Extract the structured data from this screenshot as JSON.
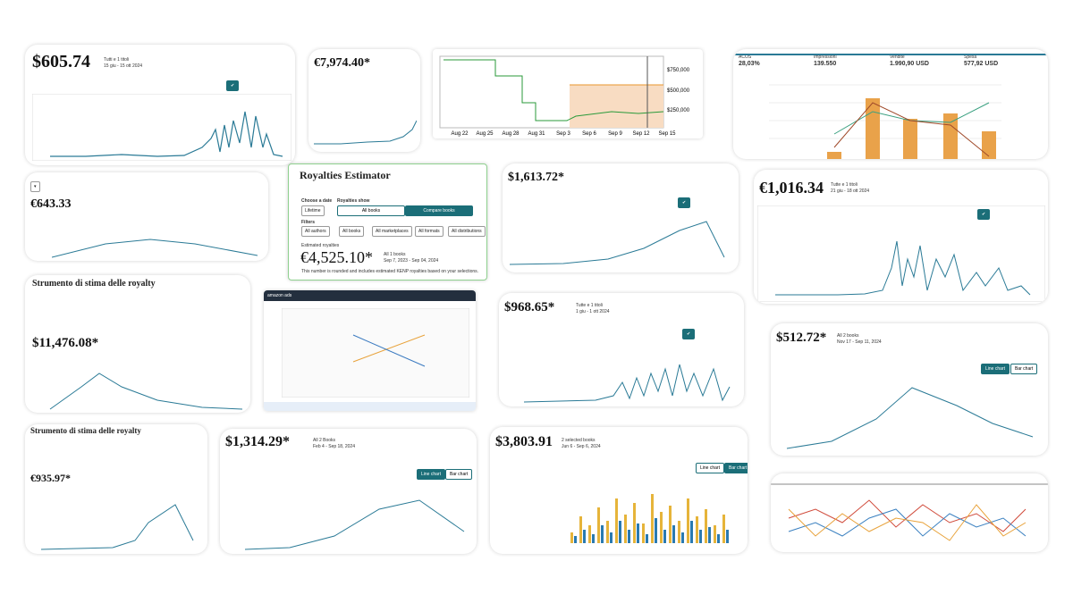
{
  "tiles": [
    {
      "value": "$605.74",
      "books": "Tutti e 1 titoli",
      "range": "15 giu - 15 ott 2024"
    },
    {
      "value": "€7,974.40*"
    },
    {
      "x_labels": [
        "Aug 22",
        "Aug 25",
        "Aug 28",
        "Aug 31",
        "Sep 3",
        "Sep 6",
        "Sep 9",
        "Sep 12",
        "Sep 15"
      ],
      "right_labels": [
        "$750,000",
        "$500,000",
        "$250,000"
      ]
    },
    {
      "metrics": [
        {
          "name": "ACOS",
          "value": "28,03%"
        },
        {
          "name": "Impressioni",
          "value": "139.550"
        },
        {
          "name": "Vendite",
          "value": "1.990,90 USD"
        },
        {
          "name": "Spesa",
          "value": "577,92 USD"
        }
      ]
    },
    {
      "value": "€643.33"
    },
    {
      "title": "Royalties Estimator",
      "choose": "Choose a date",
      "show": "Royalties show",
      "date": "Lifetime",
      "all_books": "All books",
      "compare": "Compare books",
      "filters": "Filters",
      "filter_items": [
        "All authors",
        "All books",
        "All marketplaces",
        "All formats",
        "All distributions"
      ],
      "estimated": "Estimated royalties",
      "value": "€4,525.10*",
      "books": "All 1 books",
      "range": "Sep 7, 2023 - Sep 04, 2024",
      "note": "This number is rounded and includes estimated KENP royalties based on your selections."
    },
    {
      "value": "$1,613.72*"
    },
    {
      "value": "€1,016.34",
      "books": "Tutte e 1 titoli",
      "range": "21 giu - 18 ott 2024"
    },
    {
      "title": "Strumento di stima delle royalty",
      "value": "$11,476.08*"
    },
    {
      "title": "amazon ads"
    },
    {
      "value": "$968.65*",
      "books": "Tutte e 1 titoli",
      "range": "1 giu - 1 ott 2024"
    },
    {
      "value": "$512.72*",
      "books": "All 2 books",
      "range": "Nov 17 - Sep 11, 2024",
      "line": "Line chart",
      "bar": "Bar chart"
    },
    {
      "title": "Strumento di stima delle royalty",
      "value": "€935.97*"
    },
    {
      "value": "$1,314.29*",
      "books": "All 2 Books",
      "range": "Feb 4 - Sep 18, 2024",
      "line": "Line chart",
      "bar": "Bar chart"
    },
    {
      "value": "$3,803.91",
      "books": "2 selected books",
      "range": "Jun 6 - Sep 6, 2024",
      "line": "Line chart",
      "bar": "Bar chart"
    },
    {}
  ]
}
